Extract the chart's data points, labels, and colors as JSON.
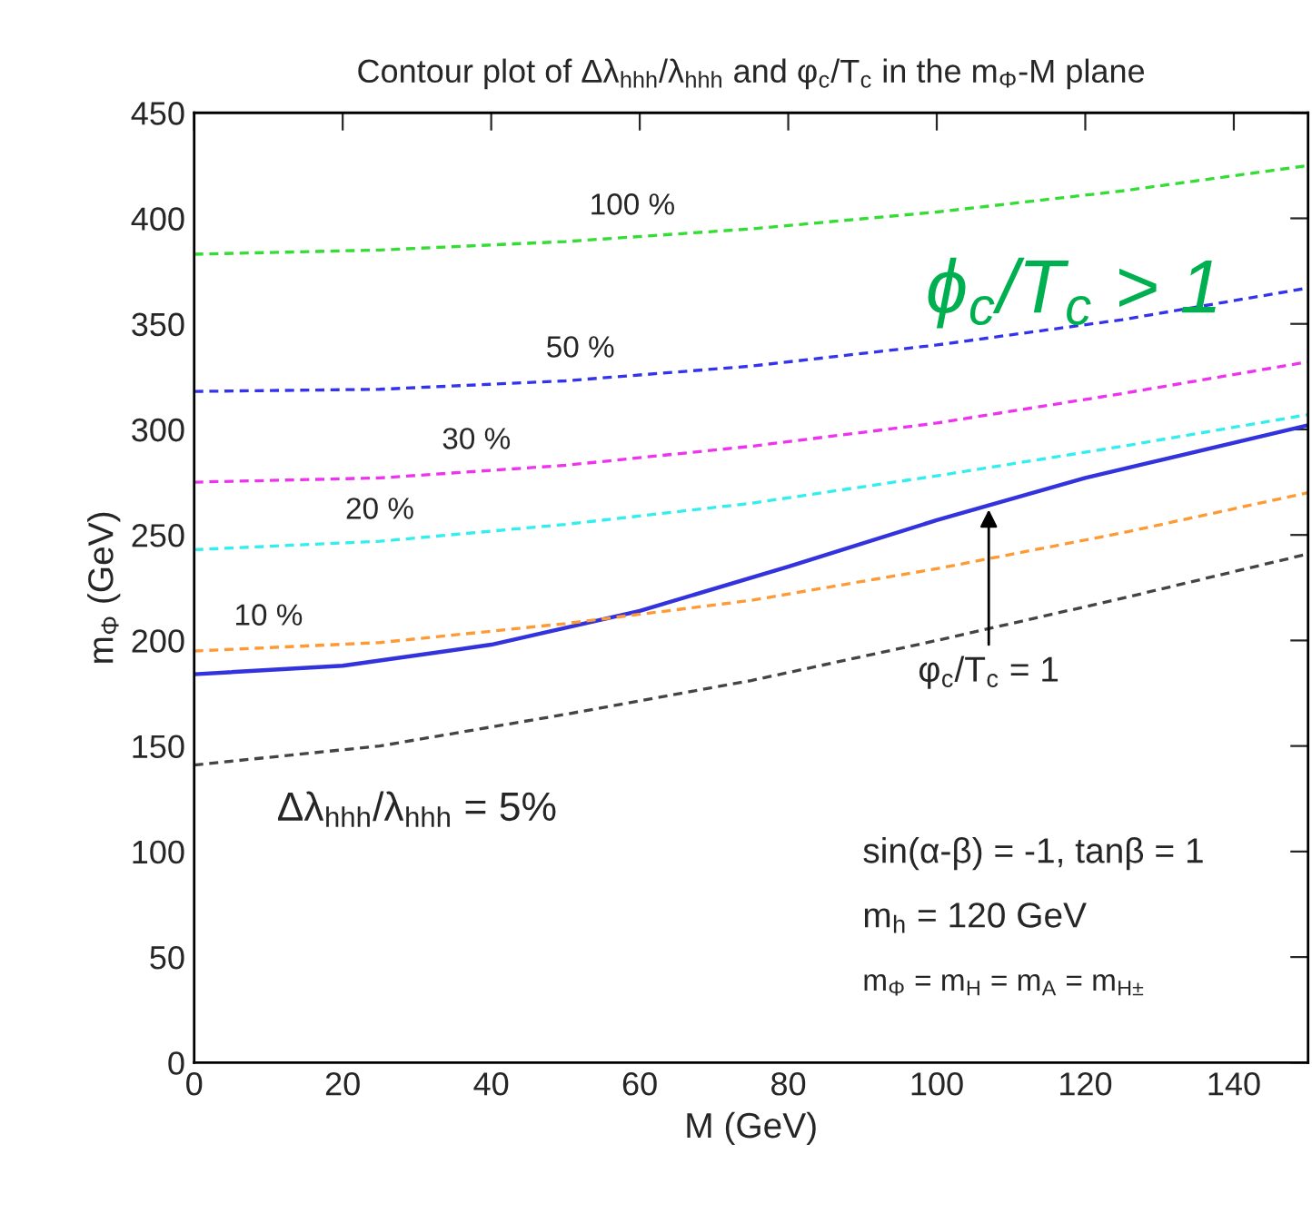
{
  "chart_data": {
    "type": "line",
    "title": "Contour plot of Δλ$_{hhh}$/λ$_{hhh}$ and φ$_{c}$/T$_{c}$ in the m$_{Φ}$-M plane",
    "xlabel": "M (GeV)",
    "ylabel": "m$_{Φ}$ (GeV)",
    "xlim": [
      0,
      150
    ],
    "ylim": [
      0,
      450
    ],
    "xticks": [
      0,
      20,
      40,
      60,
      80,
      100,
      120,
      140
    ],
    "yticks": [
      0,
      50,
      100,
      150,
      200,
      250,
      300,
      350,
      400,
      450
    ],
    "grid": false,
    "legend": false,
    "marker": "none",
    "series": [
      {
        "name": "100 %",
        "color": "#33dd33",
        "line_style": "dashed",
        "x": [
          0,
          25,
          50,
          75,
          100,
          125,
          150
        ],
        "values": [
          383,
          385,
          389,
          395,
          403,
          413,
          425
        ]
      },
      {
        "name": "50 %",
        "color": "#3333ee",
        "line_style": "dashed",
        "x": [
          0,
          25,
          50,
          75,
          100,
          125,
          150
        ],
        "values": [
          318,
          319,
          323,
          330,
          340,
          352,
          367
        ]
      },
      {
        "name": "30 %",
        "color": "#ee33ee",
        "line_style": "dashed",
        "x": [
          0,
          25,
          50,
          75,
          100,
          125,
          150
        ],
        "values": [
          275,
          277,
          283,
          292,
          303,
          317,
          332
        ]
      },
      {
        "name": "20 %",
        "color": "#33eeee",
        "line_style": "dashed",
        "x": [
          0,
          25,
          50,
          75,
          100,
          125,
          150
        ],
        "values": [
          243,
          247,
          255,
          265,
          278,
          292,
          307
        ]
      },
      {
        "color": "#3333dd",
        "line_style": "solid",
        "x": [
          0,
          20,
          40,
          60,
          80,
          100,
          120,
          150
        ],
        "values": [
          184,
          188,
          198,
          214,
          235,
          257,
          277,
          302
        ]
      },
      {
        "name": "10 %",
        "color": "#ff9933",
        "line_style": "dashed",
        "x": [
          0,
          25,
          50,
          75,
          100,
          125,
          150
        ],
        "values": [
          195,
          199,
          208,
          219,
          234,
          251,
          270
        ]
      },
      {
        "name": "Δλ$_{hhh}$/λ$_{hhh}$ = 5%",
        "color": "#444444",
        "line_style": "dashed",
        "x": [
          0,
          25,
          50,
          75,
          100,
          125,
          150
        ],
        "values": [
          141,
          150,
          165,
          181,
          200,
          220,
          241
        ]
      }
    ],
    "annotations": [
      {
        "text": "φ$_{c}$/T$_{c}$ = 1",
        "x": 107,
        "y": 262
      },
      "ϕ$_{c}$/T$_{c}$ > 1",
      "sin(α-β) = -1, tanβ = 1",
      "m$_{h}$ = 120 GeV",
      "m$_{Φ}$ = m$_{H}$ = m$_{A}$ = m$_{H±}$"
    ]
  }
}
